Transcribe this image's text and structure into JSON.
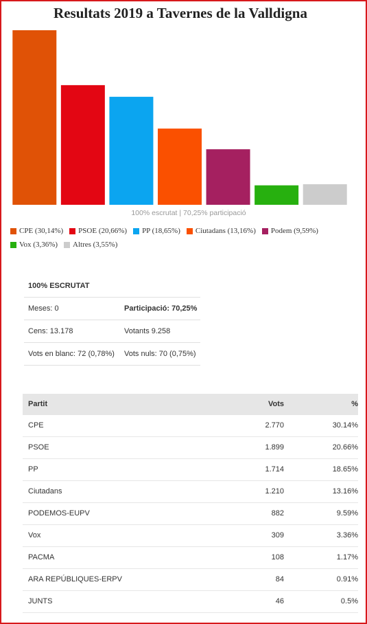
{
  "chart_data": {
    "type": "bar",
    "title": "Resultats 2019 a Tavernes de la Valldigna",
    "categories": [
      "CPE (30,14%)",
      "PSOE (20,66%)",
      "PP (18,65%)",
      "Ciutadans (13,16%)",
      "Podem (9,59%)",
      "Vox (3,36%)",
      "Altres (3,55%)"
    ],
    "values": [
      30.14,
      20.66,
      18.65,
      13.16,
      9.59,
      3.36,
      3.55
    ],
    "colors": [
      "#e05206",
      "#e30613",
      "#0ba5f0",
      "#fa5000",
      "#a52060",
      "#27b00f",
      "#cccccc"
    ],
    "note": "100% escrutat | 70,25% participació"
  },
  "summary": {
    "title": "100% ESCRUTAT",
    "rows": [
      [
        "Meses: 0",
        "Participació: 70,25%"
      ],
      [
        "Cens: 13.178",
        "Votants 9.258"
      ],
      [
        "Vots en blanc: 72 (0,78%)",
        "Vots nuls: 70 (0,75%)"
      ]
    ]
  },
  "table": {
    "header": [
      "Partit",
      "Vots",
      "%"
    ],
    "rows": [
      [
        "CPE",
        "2.770",
        "30.14%"
      ],
      [
        "PSOE",
        "1.899",
        "20.66%"
      ],
      [
        "PP",
        "1.714",
        "18.65%"
      ],
      [
        "Ciutadans",
        "1.210",
        "13.16%"
      ],
      [
        "PODEMOS-EUPV",
        "882",
        "9.59%"
      ],
      [
        "Vox",
        "309",
        "3.36%"
      ],
      [
        "PACMA",
        "108",
        "1.17%"
      ],
      [
        "ARA REPÚBLIQUES-ERPV",
        "84",
        "0.91%"
      ],
      [
        "JUNTS",
        "46",
        "0.5%"
      ]
    ]
  }
}
